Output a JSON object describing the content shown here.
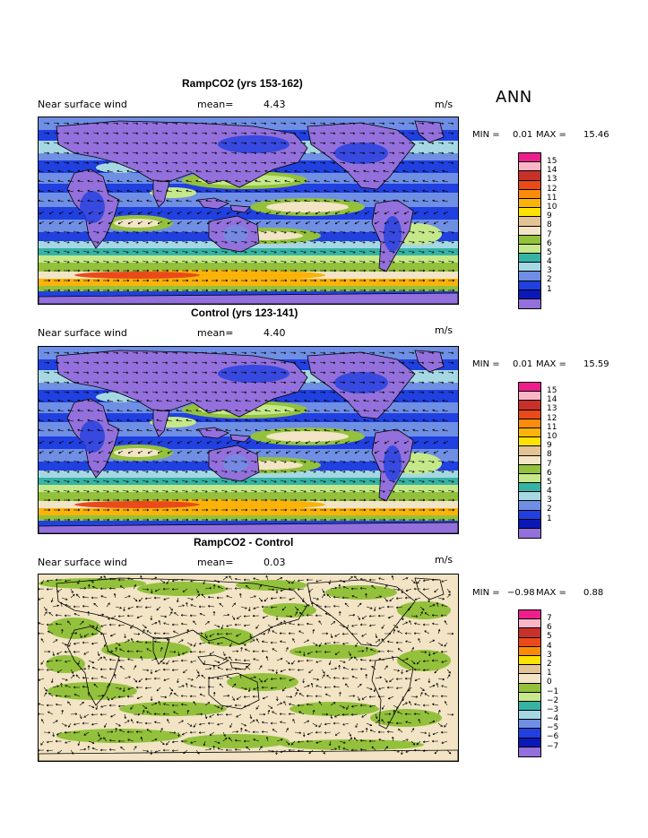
{
  "season": "ANN",
  "panels": [
    {
      "title": "RampCO2 (yrs 153-162)",
      "variable": "Near surface wind",
      "mean_label": "mean=",
      "mean_value": "4.43",
      "units": "m/s",
      "min_label": "MIN =",
      "min_value": "0.01",
      "max_label": "MAX =",
      "max_value": "15.46",
      "colorbar": {
        "labels": [
          "15",
          "14",
          "13",
          "12",
          "11",
          "10",
          "9",
          "8",
          "7",
          "6",
          "5",
          "4",
          "3",
          "2",
          "1"
        ],
        "colors": [
          "#ee1f8c",
          "#f9b6c6",
          "#c8302a",
          "#ea4a1a",
          "#fb8c0a",
          "#fbb30a",
          "#fde200",
          "#e3c394",
          "#f2e4c4",
          "#93c13c",
          "#c5e88a",
          "#36b3a5",
          "#a6d8e3",
          "#6f8fe4",
          "#2040e0",
          "#0b18b8",
          "#9370db"
        ]
      },
      "arrow_pattern": "annual"
    },
    {
      "title": "Control (yrs 123-141)",
      "variable": "Near surface wind",
      "mean_label": "mean=",
      "mean_value": "4.40",
      "units": "m/s",
      "min_label": "MIN =",
      "min_value": "0.01",
      "max_label": "MAX =",
      "max_value": "15.59",
      "colorbar": {
        "labels": [
          "15",
          "14",
          "13",
          "12",
          "11",
          "10",
          "9",
          "8",
          "7",
          "6",
          "5",
          "4",
          "3",
          "2",
          "1"
        ],
        "colors": [
          "#ee1f8c",
          "#f9b6c6",
          "#c8302a",
          "#ea4a1a",
          "#fb8c0a",
          "#fbb30a",
          "#fde200",
          "#e3c394",
          "#f2e4c4",
          "#93c13c",
          "#c5e88a",
          "#36b3a5",
          "#a6d8e3",
          "#6f8fe4",
          "#2040e0",
          "#0b18b8",
          "#9370db"
        ]
      },
      "arrow_pattern": "annual"
    },
    {
      "title": "RampCO2 - Control",
      "variable": "Near surface wind",
      "mean_label": "mean=",
      "mean_value": "0.03",
      "units": "m/s",
      "min_label": "MIN =",
      "min_value": "−0.98",
      "max_label": "MAX =",
      "max_value": "0.88",
      "colorbar": {
        "labels": [
          "7",
          "6",
          "5",
          "4",
          "3",
          "2",
          "1",
          "0",
          "−1",
          "−2",
          "−3",
          "−4",
          "−5",
          "−6",
          "−7"
        ],
        "colors": [
          "#ee1f8c",
          "#f9b6c6",
          "#c8302a",
          "#ea4a1a",
          "#fb8c0a",
          "#fde200",
          "#e3c394",
          "#f2e4c4",
          "#93c13c",
          "#c5e88a",
          "#36b3a5",
          "#a6d8e3",
          "#6f8fe4",
          "#2040e0",
          "#0b18b8",
          "#9370db"
        ]
      },
      "arrow_pattern": "difference"
    }
  ],
  "map_palette": {
    "ocean_calm": "#9370db",
    "low": "#2040e0",
    "mid": "#6f8fe4",
    "moderate": "#a6d8e3",
    "teal": "#36b3a5",
    "green_light": "#c5e88a",
    "green": "#93c13c",
    "tan": "#f2e4c4",
    "strong": "#fbb30a",
    "strongest": "#ea4a1a",
    "diff_pos": "#f2e4c4",
    "diff_neg": "#93c13c"
  }
}
